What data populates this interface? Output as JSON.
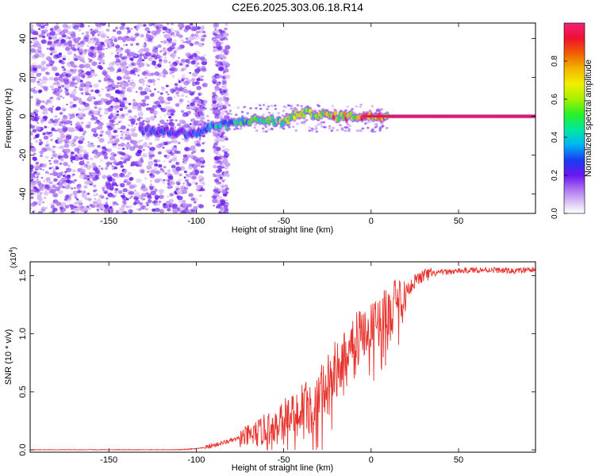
{
  "figure": {
    "title": "C2E6.2025.303.06.18.R14"
  },
  "chart_data": [
    {
      "type": "heatmap",
      "xlabel": "Height of straight line (km)",
      "ylabel": "Frequency (Hz)",
      "xlim": [
        -195,
        94
      ],
      "ylim": [
        -50,
        48
      ],
      "xticks": [
        -150,
        -100,
        -50,
        0,
        50
      ],
      "yticks": [
        -40,
        -20,
        0,
        20,
        40
      ],
      "grid": false,
      "colorbar": {
        "label": "Normalized spectral amplitude",
        "range": [
          0,
          1
        ],
        "ticks": [
          "0.0",
          "0.2",
          "0.4",
          "0.6",
          "0.8"
        ]
      },
      "ridge": {
        "description_points_x": [
          -130,
          -115,
          -100,
          -90,
          -80,
          -70,
          -60,
          -50,
          -40,
          -30,
          -20,
          -10,
          0,
          10,
          20,
          50,
          94
        ],
        "frequency_hz": [
          -7,
          -8,
          -9,
          -5,
          -4,
          -2,
          -2,
          -3,
          2,
          1,
          0,
          0,
          0,
          0,
          0,
          0,
          0
        ],
        "amplitude": [
          0.25,
          0.3,
          0.3,
          0.4,
          0.45,
          0.5,
          0.55,
          0.6,
          0.65,
          0.7,
          0.8,
          0.85,
          0.9,
          0.92,
          0.95,
          0.97,
          0.98
        ]
      }
    },
    {
      "type": "line",
      "xlabel": "Height of straight line (km)",
      "ylabel": "SNR (10 * v/v)",
      "y_multiplier": "(x10^4)",
      "xlim": [
        -195,
        94
      ],
      "ylim": [
        -0.02,
        1.62
      ],
      "xticks": [
        -150,
        -100,
        -50,
        0,
        50
      ],
      "yticks": [
        "0.0",
        "0.5",
        "1.0",
        "1.5"
      ],
      "grid": false,
      "series": [
        {
          "color": "#e8322c",
          "x": [
            -195,
            -150,
            -110,
            -100,
            -95,
            -90,
            -85,
            -80,
            -75,
            -70,
            -65,
            -60,
            -55,
            -50,
            -45,
            -40,
            -35,
            -30,
            -25,
            -20,
            -15,
            -10,
            -5,
            0,
            5,
            10,
            15,
            20,
            25,
            30,
            40,
            50,
            60,
            70,
            80,
            94
          ],
          "y": [
            0.0,
            0.0,
            0.0,
            0.01,
            0.02,
            0.04,
            0.06,
            0.08,
            0.1,
            0.12,
            0.14,
            0.18,
            0.22,
            0.26,
            0.3,
            0.34,
            0.38,
            0.44,
            0.55,
            0.68,
            0.82,
            0.94,
            1.02,
            1.05,
            1.12,
            1.2,
            1.28,
            1.37,
            1.45,
            1.5,
            1.53,
            1.54,
            1.55,
            1.55,
            1.54,
            1.55
          ]
        }
      ]
    }
  ]
}
